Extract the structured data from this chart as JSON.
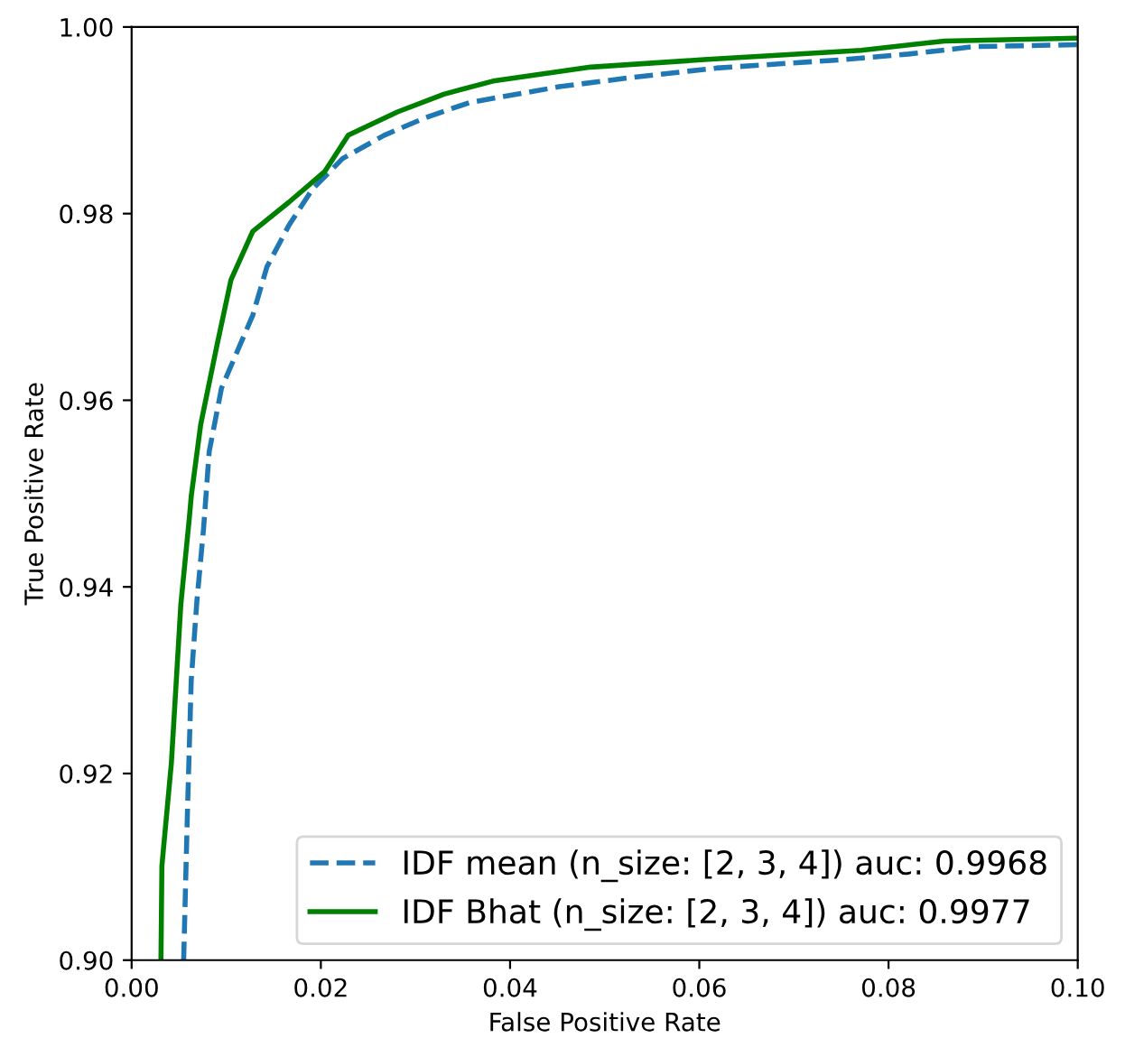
{
  "chart_data": {
    "type": "line",
    "xlabel": "False Positive Rate",
    "ylabel": "True Positive Rate",
    "xlim": [
      0,
      0.1
    ],
    "ylim": [
      0.9,
      1.0
    ],
    "xticks": [
      {
        "value": 0,
        "label": "0.00"
      },
      {
        "value": 0.02,
        "label": "0.02"
      },
      {
        "value": 0.04,
        "label": "0.04"
      },
      {
        "value": 0.06,
        "label": "0.06"
      },
      {
        "value": 0.08,
        "label": "0.08"
      },
      {
        "value": 0.1,
        "label": "0.10"
      }
    ],
    "yticks": [
      {
        "value": 0.9,
        "label": "0.90"
      },
      {
        "value": 0.92,
        "label": "0.92"
      },
      {
        "value": 0.94,
        "label": "0.94"
      },
      {
        "value": 0.96,
        "label": "0.96"
      },
      {
        "value": 0.98,
        "label": "0.98"
      },
      {
        "value": 1.0,
        "label": "1.00"
      }
    ],
    "grid": false,
    "legend": "bottom right",
    "series": [
      {
        "name": "IDF mean (n_size: [2, 3, 4]) auc: 0.9968",
        "color": "#1f77b4",
        "line_style": "dashed",
        "x": [
          0.0055,
          0.0059,
          0.0063,
          0.0069,
          0.0076,
          0.0082,
          0.0095,
          0.0128,
          0.0143,
          0.0166,
          0.0191,
          0.0223,
          0.0267,
          0.0311,
          0.0357,
          0.0452,
          0.0529,
          0.0618,
          0.0752,
          0.0821,
          0.0891,
          0.1
        ],
        "values": [
          0.9,
          0.9159,
          0.93,
          0.9385,
          0.9462,
          0.9545,
          0.9613,
          0.9691,
          0.9743,
          0.9787,
          0.9826,
          0.9859,
          0.9884,
          0.9903,
          0.9919,
          0.9936,
          0.9946,
          0.9956,
          0.9965,
          0.9971,
          0.9979,
          0.9981
        ]
      },
      {
        "name": "IDF Bhat (n_size: [2, 3, 4]) auc: 0.9977",
        "color": "#008000",
        "line_style": "solid",
        "x": [
          0.0031,
          0.0032,
          0.0042,
          0.0052,
          0.0061,
          0.0063,
          0.0073,
          0.009,
          0.0105,
          0.0128,
          0.0166,
          0.0204,
          0.0229,
          0.0281,
          0.033,
          0.0382,
          0.0485,
          0.0605,
          0.0771,
          0.0859,
          0.1
        ],
        "values": [
          0.9,
          0.9101,
          0.9211,
          0.9381,
          0.9474,
          0.9497,
          0.9574,
          0.9658,
          0.9729,
          0.9781,
          0.9812,
          0.9845,
          0.9884,
          0.9909,
          0.9928,
          0.9942,
          0.9957,
          0.9965,
          0.9975,
          0.9985,
          0.9988
        ]
      }
    ]
  }
}
